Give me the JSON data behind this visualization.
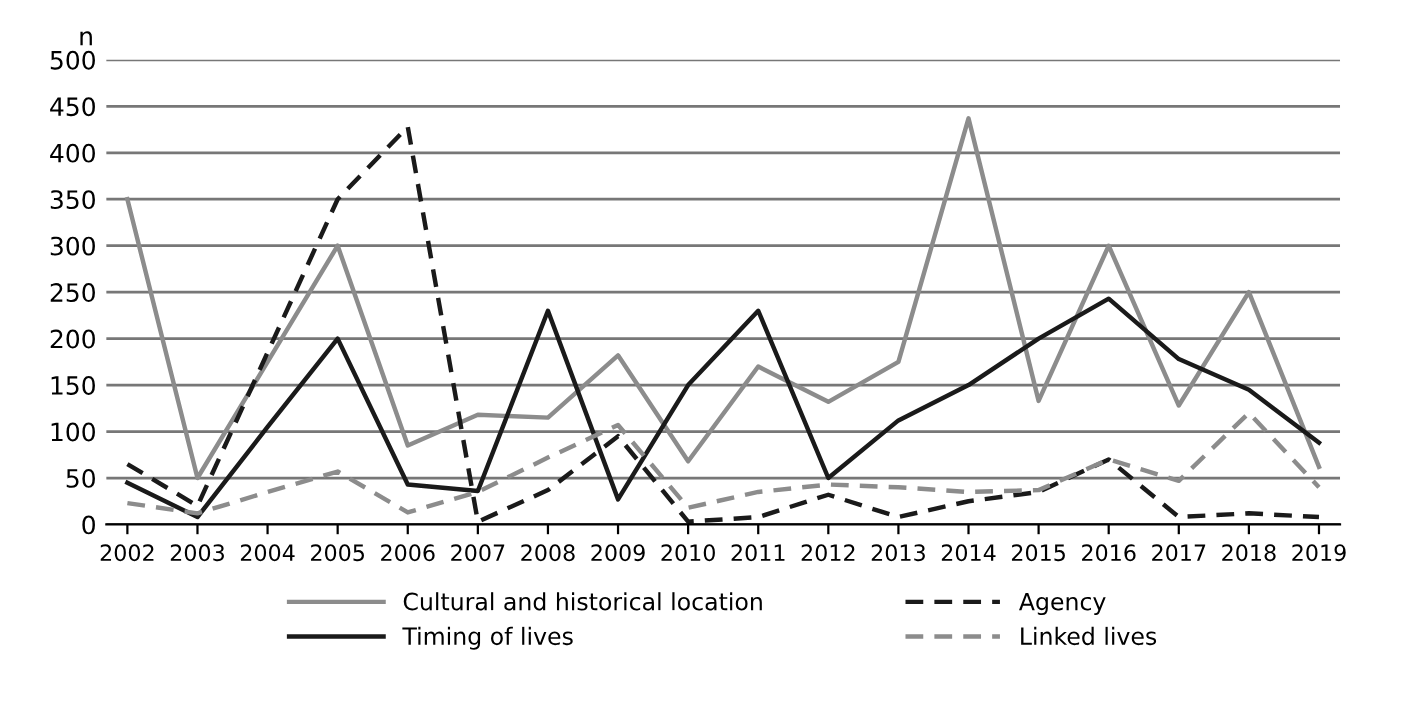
{
  "chart_data": {
    "type": "line",
    "ylabel": "n",
    "categories": [
      "2002",
      "2003",
      "2004",
      "2005",
      "2006",
      "2007",
      "2008",
      "2009",
      "2010",
      "2011",
      "2012",
      "2013",
      "2014",
      "2015",
      "2016",
      "2017",
      "2018",
      "2019"
    ],
    "series": [
      {
        "name": "Cultural and historical location",
        "color": "#8c8c8c",
        "line_style": "solid",
        "values": [
          350,
          50,
          175,
          300,
          85,
          118,
          115,
          182,
          68,
          170,
          132,
          175,
          437,
          133,
          300,
          128,
          250,
          62
        ]
      },
      {
        "name": "Agency",
        "color": "#1a1a1a",
        "line_style": "dashed",
        "values": [
          65,
          20,
          185,
          350,
          428,
          3,
          37,
          95,
          3,
          8,
          32,
          8,
          25,
          35,
          70,
          8,
          12,
          8
        ]
      },
      {
        "name": "Timing of lives",
        "color": "#1a1a1a",
        "line_style": "solid",
        "values": [
          45,
          8,
          105,
          200,
          43,
          36,
          230,
          27,
          150,
          230,
          50,
          112,
          150,
          200,
          243,
          178,
          145,
          88
        ]
      },
      {
        "name": "Linked lives",
        "color": "#8c8c8c",
        "line_style": "dashed",
        "values": [
          23,
          12,
          35,
          57,
          13,
          35,
          72,
          107,
          18,
          35,
          43,
          40,
          35,
          37,
          70,
          47,
          120,
          40
        ]
      }
    ],
    "ylim": [
      0,
      500
    ],
    "yticks": [
      0,
      50,
      100,
      150,
      200,
      250,
      300,
      350,
      400,
      450,
      500
    ],
    "grid": "y",
    "legend": "bottom",
    "marker": "none"
  }
}
